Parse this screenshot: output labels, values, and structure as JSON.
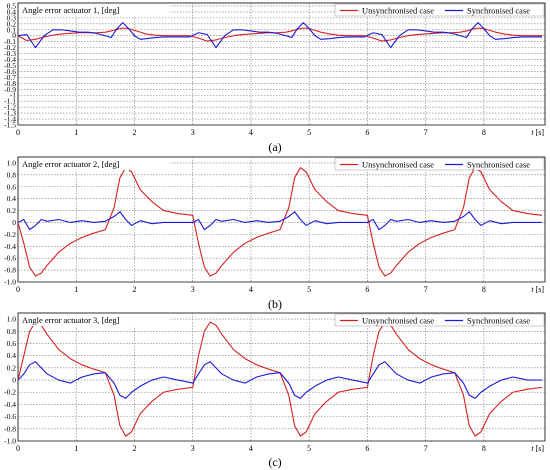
{
  "chart_data": [
    {
      "type": "line",
      "title": "Angle error actuator 1, [deg]",
      "xlabel": "t [s]",
      "caption": "(a)",
      "xlim": [
        0,
        9.05
      ],
      "ylim": [
        -1.5,
        0.55
      ],
      "xticks": [
        "0",
        "1",
        "2",
        "3",
        "4",
        "5",
        "6",
        "7",
        "8"
      ],
      "yticks": [
        "0.5",
        "0.4",
        "0.3",
        "0.2",
        "0.1",
        "0",
        "-0.1",
        "-0.2",
        "-0.3",
        "-0.4",
        "-0.5",
        "-0.6",
        "-0.7",
        "-0.8",
        "-0.9",
        "-1",
        "-1.1",
        "-1.2",
        "-1.3",
        "-1.4",
        "-1.5"
      ],
      "ytick_values": [
        0.5,
        0.4,
        0.3,
        0.2,
        0.1,
        0,
        -0.1,
        -0.2,
        -0.3,
        -0.4,
        -0.5,
        -0.6,
        -0.7,
        -0.8,
        -0.9,
        -1.0,
        -1.1,
        -1.2,
        -1.3,
        -1.4,
        -1.5
      ],
      "grid": true,
      "legend_position": "top-right",
      "x": [
        0,
        0.15,
        0.3,
        0.45,
        0.6,
        0.75,
        0.9,
        1.05,
        1.2,
        1.35,
        1.5,
        1.6,
        1.7,
        1.8,
        1.9,
        2.0,
        2.1,
        2.2,
        2.35,
        2.5,
        2.65,
        2.8,
        2.95,
        3.1,
        3.25,
        3.4,
        3.55,
        3.7,
        3.85,
        4.0,
        4.15,
        4.3,
        4.45,
        4.6,
        4.7,
        4.8,
        4.9,
        5.0,
        5.1,
        5.2,
        5.35,
        5.5,
        5.65,
        5.8,
        5.95,
        6.1,
        6.25,
        6.4,
        6.55,
        6.7,
        6.85,
        7.0,
        7.15,
        7.3,
        7.45,
        7.6,
        7.7,
        7.8,
        7.9,
        8.0,
        8.1,
        8.2,
        8.35,
        8.5,
        8.65,
        8.8,
        9.0
      ],
      "series": [
        {
          "name": "Unsynchronised case",
          "color": "#d62020",
          "values": [
            0,
            -0.08,
            -0.06,
            -0.02,
            0.01,
            0.03,
            0.04,
            0.05,
            0.05,
            0.05,
            0.06,
            0.08,
            0.11,
            0.13,
            0.12,
            0.09,
            0.06,
            0.03,
            0.01,
            0.0,
            0.0,
            0.0,
            0.0,
            -0.04,
            -0.09,
            -0.07,
            -0.03,
            0.0,
            0.02,
            0.03,
            0.04,
            0.05,
            0.05,
            0.06,
            0.08,
            0.11,
            0.13,
            0.12,
            0.09,
            0.06,
            0.03,
            0.01,
            0.0,
            0.0,
            0.0,
            -0.04,
            -0.09,
            -0.07,
            -0.03,
            0.0,
            0.02,
            0.03,
            0.04,
            0.05,
            0.05,
            0.06,
            0.08,
            0.11,
            0.13,
            0.12,
            0.09,
            0.06,
            0.03,
            0.01,
            0.0,
            0.0,
            0.0
          ]
        },
        {
          "name": "Synchronised case",
          "color": "#1a1ad6",
          "values": [
            0,
            0.02,
            -0.2,
            0.0,
            0.1,
            0.1,
            0.08,
            0.06,
            0.06,
            0.04,
            0.0,
            -0.03,
            0.12,
            0.22,
            0.12,
            0.0,
            -0.06,
            -0.05,
            -0.03,
            -0.02,
            -0.02,
            -0.02,
            -0.02,
            0.05,
            0.02,
            -0.2,
            0.0,
            0.1,
            0.1,
            0.08,
            0.06,
            0.06,
            0.04,
            0.0,
            -0.03,
            0.12,
            0.22,
            0.12,
            0.0,
            -0.06,
            -0.05,
            -0.03,
            -0.02,
            -0.02,
            -0.02,
            0.05,
            0.02,
            -0.2,
            0.0,
            0.1,
            0.1,
            0.08,
            0.06,
            0.06,
            0.04,
            0.0,
            -0.03,
            0.12,
            0.22,
            0.12,
            0.0,
            -0.06,
            -0.05,
            -0.03,
            -0.02,
            -0.02,
            -0.02
          ]
        }
      ]
    },
    {
      "type": "line",
      "title": "Angle error actuator 2, [deg]",
      "xlabel": "t [s]",
      "caption": "(b)",
      "xlim": [
        0,
        9.05
      ],
      "ylim": [
        -1.0,
        1.1
      ],
      "xticks": [
        "0",
        "1",
        "2",
        "3",
        "4",
        "5",
        "6",
        "7",
        "8"
      ],
      "yticks": [
        "1.0",
        "0.8",
        "0.6",
        "0.4",
        "0.2",
        "0",
        "-0.2",
        "-0.4",
        "-0.6",
        "-0.8",
        "-1.0"
      ],
      "ytick_values": [
        1.0,
        0.8,
        0.6,
        0.4,
        0.2,
        0,
        -0.2,
        -0.4,
        -0.6,
        -0.8,
        -1.0
      ],
      "grid": true,
      "legend_position": "top-right",
      "x": [
        0,
        0.1,
        0.2,
        0.3,
        0.4,
        0.5,
        0.7,
        0.9,
        1.1,
        1.3,
        1.5,
        1.65,
        1.75,
        1.85,
        1.95,
        2.1,
        2.3,
        2.5,
        2.75,
        3.0,
        3.1,
        3.2,
        3.3,
        3.4,
        3.5,
        3.7,
        3.9,
        4.1,
        4.3,
        4.5,
        4.65,
        4.75,
        4.85,
        4.95,
        5.1,
        5.3,
        5.5,
        5.75,
        6.0,
        6.1,
        6.2,
        6.3,
        6.4,
        6.5,
        6.7,
        6.9,
        7.1,
        7.3,
        7.5,
        7.65,
        7.75,
        7.85,
        7.95,
        8.1,
        8.3,
        8.5,
        8.75,
        9.0
      ],
      "series": [
        {
          "name": "Unsynchronised case",
          "color": "#d62020",
          "values": [
            0,
            -0.35,
            -0.75,
            -0.9,
            -0.85,
            -0.72,
            -0.5,
            -0.35,
            -0.25,
            -0.18,
            -0.12,
            0.25,
            0.75,
            0.92,
            0.85,
            0.55,
            0.35,
            0.2,
            0.15,
            0.12,
            -0.35,
            -0.75,
            -0.9,
            -0.85,
            -0.72,
            -0.5,
            -0.35,
            -0.25,
            -0.18,
            -0.12,
            0.25,
            0.75,
            0.92,
            0.85,
            0.55,
            0.35,
            0.2,
            0.15,
            0.12,
            -0.35,
            -0.75,
            -0.9,
            -0.85,
            -0.72,
            -0.5,
            -0.35,
            -0.25,
            -0.18,
            -0.12,
            0.25,
            0.75,
            0.92,
            0.85,
            0.55,
            0.35,
            0.2,
            0.15,
            0.12
          ]
        },
        {
          "name": "Synchronised case",
          "color": "#1a1ad6",
          "values": [
            0,
            0.05,
            -0.12,
            -0.05,
            0.05,
            0.02,
            0.05,
            0.0,
            0.03,
            0.0,
            0.02,
            0.1,
            0.18,
            0.05,
            -0.05,
            0.03,
            -0.02,
            0.0,
            0.0,
            0.0,
            0.05,
            -0.12,
            -0.05,
            0.05,
            0.02,
            0.05,
            0.0,
            0.03,
            0.0,
            0.02,
            0.1,
            0.18,
            0.05,
            -0.05,
            0.03,
            -0.02,
            0.0,
            0.0,
            0.0,
            0.05,
            -0.12,
            -0.05,
            0.05,
            0.02,
            0.05,
            0.0,
            0.03,
            0.0,
            0.02,
            0.1,
            0.18,
            0.05,
            -0.05,
            0.03,
            -0.02,
            0.0,
            0.0,
            0.0
          ]
        }
      ]
    },
    {
      "type": "line",
      "title": "Angle error actuator 3, [deg]",
      "xlabel": "t [s]",
      "caption": "(c)",
      "xlim": [
        0,
        9.05
      ],
      "ylim": [
        -1.0,
        1.1
      ],
      "xticks": [
        "0",
        "1",
        "2",
        "3",
        "4",
        "5",
        "6",
        "7",
        "8"
      ],
      "yticks": [
        "1.0",
        "0.8",
        "0.6",
        "0.4",
        "0.2",
        "0",
        "-0.2",
        "-0.4",
        "-0.6",
        "-0.8",
        "-1.0"
      ],
      "ytick_values": [
        1.0,
        0.8,
        0.6,
        0.4,
        0.2,
        0,
        -0.2,
        -0.4,
        -0.6,
        -0.8,
        -1.0
      ],
      "grid": true,
      "legend_position": "top-right",
      "x": [
        0,
        0.1,
        0.2,
        0.3,
        0.4,
        0.5,
        0.7,
        0.9,
        1.1,
        1.3,
        1.5,
        1.65,
        1.75,
        1.85,
        1.95,
        2.1,
        2.3,
        2.5,
        2.75,
        3.0,
        3.1,
        3.2,
        3.3,
        3.4,
        3.5,
        3.7,
        3.9,
        4.1,
        4.3,
        4.5,
        4.65,
        4.75,
        4.85,
        4.95,
        5.1,
        5.3,
        5.5,
        5.75,
        6.0,
        6.1,
        6.2,
        6.3,
        6.4,
        6.5,
        6.7,
        6.9,
        7.1,
        7.3,
        7.5,
        7.65,
        7.75,
        7.85,
        7.95,
        8.1,
        8.3,
        8.5,
        8.75,
        9.0
      ],
      "series": [
        {
          "name": "Unsynchronised case",
          "color": "#d62020",
          "values": [
            0,
            0.4,
            0.8,
            0.95,
            0.9,
            0.75,
            0.5,
            0.35,
            0.25,
            0.18,
            0.12,
            -0.25,
            -0.75,
            -0.92,
            -0.85,
            -0.55,
            -0.35,
            -0.2,
            -0.15,
            -0.12,
            0.4,
            0.8,
            0.95,
            0.9,
            0.75,
            0.5,
            0.35,
            0.25,
            0.18,
            0.12,
            -0.25,
            -0.75,
            -0.92,
            -0.85,
            -0.55,
            -0.35,
            -0.2,
            -0.15,
            -0.12,
            0.4,
            0.8,
            0.95,
            0.9,
            0.75,
            0.5,
            0.35,
            0.25,
            0.18,
            0.12,
            -0.25,
            -0.75,
            -0.92,
            -0.85,
            -0.55,
            -0.35,
            -0.2,
            -0.15,
            -0.12
          ]
        },
        {
          "name": "Synchronised case",
          "color": "#1a1ad6",
          "values": [
            0,
            0.1,
            0.25,
            0.3,
            0.2,
            0.1,
            0.0,
            -0.05,
            0.05,
            0.1,
            0.12,
            -0.05,
            -0.25,
            -0.3,
            -0.2,
            -0.1,
            0.0,
            0.05,
            0.0,
            -0.05,
            0.1,
            0.25,
            0.3,
            0.2,
            0.1,
            0.0,
            -0.05,
            0.05,
            0.1,
            0.12,
            -0.05,
            -0.25,
            -0.3,
            -0.2,
            -0.1,
            0.0,
            0.05,
            0.0,
            -0.05,
            0.1,
            0.25,
            0.3,
            0.2,
            0.1,
            0.0,
            -0.05,
            0.05,
            0.1,
            0.12,
            -0.05,
            -0.25,
            -0.3,
            -0.2,
            -0.1,
            0.0,
            0.05,
            0.0,
            0.0
          ]
        }
      ]
    }
  ]
}
